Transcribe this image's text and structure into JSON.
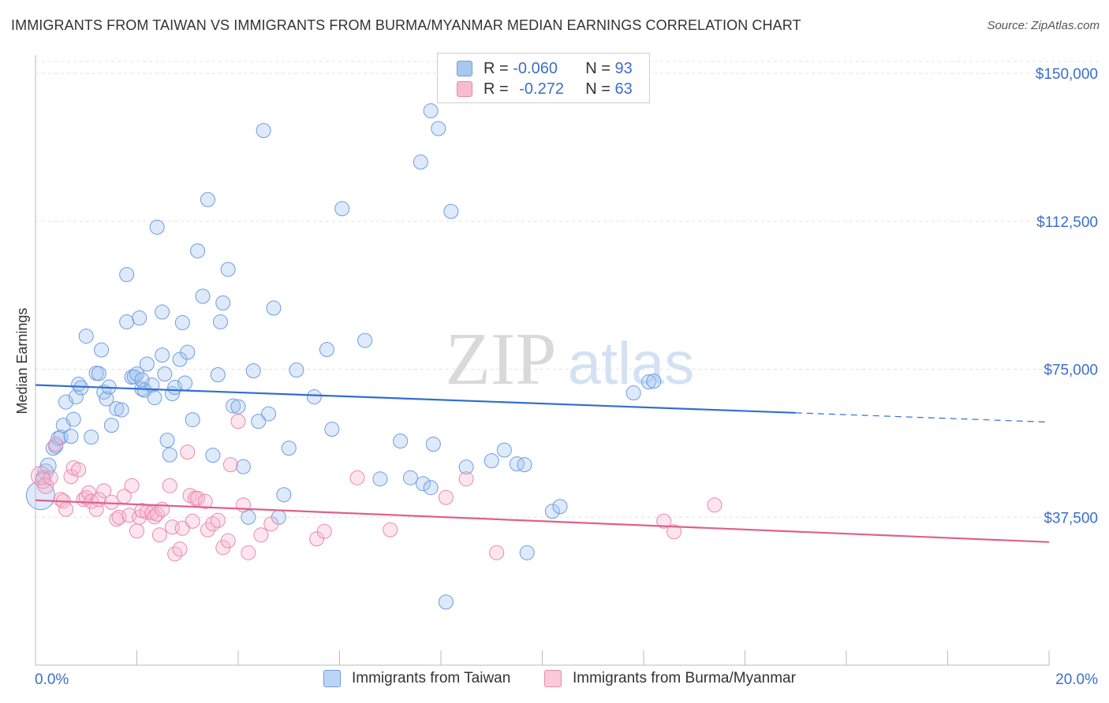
{
  "header": {
    "title": "IMMIGRANTS FROM TAIWAN VS IMMIGRANTS FROM BURMA/MYANMAR MEDIAN EARNINGS CORRELATION CHART",
    "source": "Source: ZipAtlas.com"
  },
  "watermark": {
    "zip": "ZIP",
    "atlas": "atlas"
  },
  "legend": {
    "rows": [
      {
        "r_label": "R = ",
        "r_value": "-0.060",
        "n_label": "N = ",
        "n_value": "93",
        "color": "#a9c8f0",
        "border": "#6d9de0"
      },
      {
        "r_label": "R = ",
        "r_value": "-0.272",
        "n_label": "N = ",
        "n_value": "63",
        "color": "#f7bcd0",
        "border": "#e98aaa"
      }
    ]
  },
  "bottom_legend": {
    "items": [
      {
        "label": "Immigrants from Taiwan",
        "color": "#bcd5f5",
        "border": "#6d9de0"
      },
      {
        "label": "Immigrants from Burma/Myanmar",
        "color": "#f9cad9",
        "border": "#e98aaa"
      }
    ]
  },
  "chart_data": {
    "type": "scatter",
    "title": "IMMIGRANTS FROM TAIWAN VS IMMIGRANTS FROM BURMA/MYANMAR MEDIAN EARNINGS CORRELATION CHART",
    "xlabel": "",
    "ylabel": "Median Earnings",
    "xlim": [
      0,
      20
    ],
    "ylim": [
      0,
      153000
    ],
    "x_tick_labels": [
      "0.0%",
      "20.0%"
    ],
    "y_ticks": [
      37500,
      75000,
      112500,
      150000
    ],
    "y_tick_labels": [
      "$37,500",
      "$75,000",
      "$112,500",
      "$150,000"
    ],
    "grid": true,
    "series": [
      {
        "name": "Immigrants from Taiwan",
        "color": "#6d9de0",
        "fill": "rgba(160,195,240,0.35)",
        "trend": {
          "x": [
            0,
            15.0,
            20.0
          ],
          "y": [
            71000,
            63900,
            61600
          ],
          "solid_until": 15.0,
          "color": "#2f6fd1"
        },
        "points": [
          [
            0.1,
            43000,
            18
          ],
          [
            0.2,
            49000,
            10
          ],
          [
            0.25,
            50500,
            10
          ],
          [
            0.15,
            47500,
            9
          ],
          [
            0.35,
            55000,
            9
          ],
          [
            0.4,
            55500,
            9
          ],
          [
            0.45,
            57500,
            9
          ],
          [
            0.5,
            57800,
            9
          ],
          [
            0.55,
            60800,
            9
          ],
          [
            0.6,
            66700,
            9
          ],
          [
            0.7,
            58000,
            9
          ],
          [
            0.75,
            62300,
            9
          ],
          [
            0.8,
            68000,
            9
          ],
          [
            0.85,
            71200,
            9
          ],
          [
            0.9,
            70300,
            9
          ],
          [
            1.0,
            83400,
            9
          ],
          [
            1.1,
            57800,
            9
          ],
          [
            1.2,
            74000,
            9
          ],
          [
            1.25,
            73900,
            9
          ],
          [
            1.3,
            79900,
            9
          ],
          [
            1.35,
            69200,
            9
          ],
          [
            1.4,
            67500,
            9
          ],
          [
            1.45,
            70500,
            9
          ],
          [
            1.5,
            60800,
            9
          ],
          [
            1.6,
            65000,
            9
          ],
          [
            1.7,
            64700,
            9
          ],
          [
            1.8,
            87000,
            9
          ],
          [
            1.8,
            99000,
            9
          ],
          [
            1.9,
            73000,
            9
          ],
          [
            1.95,
            73100,
            9
          ],
          [
            2.0,
            73800,
            9
          ],
          [
            2.05,
            88000,
            9
          ],
          [
            2.1,
            70000,
            9
          ],
          [
            2.15,
            69700,
            9
          ],
          [
            2.2,
            76300,
            9
          ],
          [
            2.3,
            71000,
            9
          ],
          [
            2.35,
            67800,
            9
          ],
          [
            2.1,
            72300,
            9
          ],
          [
            2.4,
            111000,
            9
          ],
          [
            2.5,
            78600,
            9
          ],
          [
            2.5,
            89500,
            9
          ],
          [
            2.55,
            73800,
            9
          ],
          [
            2.6,
            57000,
            9
          ],
          [
            2.65,
            53300,
            9
          ],
          [
            2.7,
            68800,
            9
          ],
          [
            2.75,
            70400,
            9
          ],
          [
            2.85,
            77500,
            9
          ],
          [
            2.9,
            86800,
            9
          ],
          [
            2.95,
            71500,
            9
          ],
          [
            3.0,
            79300,
            9
          ],
          [
            3.1,
            62200,
            9
          ],
          [
            3.2,
            105000,
            9
          ],
          [
            3.3,
            93500,
            9
          ],
          [
            3.4,
            118000,
            9
          ],
          [
            3.5,
            53200,
            9
          ],
          [
            3.6,
            73600,
            9
          ],
          [
            3.65,
            87000,
            9
          ],
          [
            3.7,
            91800,
            9
          ],
          [
            3.8,
            100300,
            9
          ],
          [
            3.9,
            65700,
            9
          ],
          [
            4.0,
            65500,
            9
          ],
          [
            4.1,
            50300,
            9
          ],
          [
            4.2,
            37500,
            9
          ],
          [
            4.3,
            74600,
            9
          ],
          [
            4.4,
            61800,
            9
          ],
          [
            4.5,
            135500,
            9
          ],
          [
            4.6,
            63700,
            9
          ],
          [
            4.7,
            90500,
            9
          ],
          [
            4.8,
            37500,
            9
          ],
          [
            4.9,
            43200,
            9
          ],
          [
            5.0,
            55000,
            9
          ],
          [
            5.15,
            74800,
            9
          ],
          [
            5.5,
            68000,
            9
          ],
          [
            5.75,
            80000,
            9
          ],
          [
            5.85,
            59800,
            9
          ],
          [
            6.05,
            115700,
            9
          ],
          [
            6.5,
            82300,
            9
          ],
          [
            6.8,
            47200,
            9
          ],
          [
            7.2,
            56800,
            9
          ],
          [
            7.4,
            47500,
            9
          ],
          [
            7.65,
            46000,
            9
          ],
          [
            7.8,
            45000,
            9
          ],
          [
            7.85,
            56000,
            9
          ],
          [
            7.6,
            127500,
            9
          ],
          [
            7.8,
            140500,
            9
          ],
          [
            7.95,
            136000,
            9
          ],
          [
            8.2,
            115000,
            9
          ],
          [
            8.1,
            16000,
            9
          ],
          [
            8.5,
            50200,
            9
          ],
          [
            9.0,
            51800,
            9
          ],
          [
            9.25,
            54500,
            9
          ],
          [
            9.5,
            51000,
            9
          ],
          [
            9.65,
            50800,
            9
          ],
          [
            9.7,
            28500,
            9
          ],
          [
            10.2,
            39000,
            9
          ],
          [
            10.35,
            40200,
            9
          ],
          [
            11.8,
            69000,
            9
          ],
          [
            12.1,
            71800,
            9
          ],
          [
            12.2,
            72000,
            9
          ]
        ]
      },
      {
        "name": "Immigrants from Burma/Myanmar",
        "color": "#e98aaa",
        "fill": "rgba(247,180,205,0.35)",
        "trend": {
          "x": [
            0,
            20.0
          ],
          "y": [
            41800,
            31200
          ],
          "solid_until": 20.0,
          "color": "#e0608c"
        },
        "points": [
          [
            0.1,
            48000,
            12
          ],
          [
            0.15,
            46800,
            10
          ],
          [
            0.2,
            45500,
            10
          ],
          [
            0.3,
            47500,
            9
          ],
          [
            0.4,
            56000,
            9
          ],
          [
            0.5,
            42000,
            9
          ],
          [
            0.55,
            41600,
            9
          ],
          [
            0.6,
            39500,
            9
          ],
          [
            0.7,
            47800,
            9
          ],
          [
            0.75,
            50000,
            9
          ],
          [
            0.85,
            49500,
            9
          ],
          [
            0.95,
            42000,
            9
          ],
          [
            1.0,
            42500,
            9
          ],
          [
            1.05,
            43700,
            9
          ],
          [
            1.1,
            41500,
            9
          ],
          [
            1.2,
            39500,
            9
          ],
          [
            1.25,
            42000,
            9
          ],
          [
            1.35,
            44200,
            9
          ],
          [
            1.5,
            41300,
            9
          ],
          [
            1.6,
            37000,
            9
          ],
          [
            1.65,
            37500,
            9
          ],
          [
            1.75,
            42800,
            9
          ],
          [
            1.85,
            38000,
            9
          ],
          [
            1.9,
            45500,
            9
          ],
          [
            2.0,
            34000,
            9
          ],
          [
            2.05,
            37500,
            9
          ],
          [
            2.1,
            39200,
            9
          ],
          [
            2.2,
            38800,
            9
          ],
          [
            2.3,
            38600,
            9
          ],
          [
            2.35,
            37600,
            9
          ],
          [
            2.4,
            38300,
            9
          ],
          [
            2.45,
            33000,
            9
          ],
          [
            2.5,
            39500,
            9
          ],
          [
            2.65,
            45500,
            9
          ],
          [
            2.7,
            35000,
            9
          ],
          [
            2.75,
            28200,
            9
          ],
          [
            2.85,
            29400,
            9
          ],
          [
            2.9,
            34700,
            9
          ],
          [
            3.0,
            54000,
            9
          ],
          [
            3.05,
            43000,
            9
          ],
          [
            3.1,
            36500,
            9
          ],
          [
            3.15,
            42300,
            9
          ],
          [
            3.2,
            42300,
            9
          ],
          [
            3.35,
            41500,
            9
          ],
          [
            3.4,
            34300,
            9
          ],
          [
            3.5,
            35800,
            9
          ],
          [
            3.6,
            36700,
            9
          ],
          [
            3.7,
            29800,
            9
          ],
          [
            3.8,
            31500,
            9
          ],
          [
            3.85,
            50800,
            9
          ],
          [
            4.0,
            61800,
            9
          ],
          [
            4.1,
            40600,
            9
          ],
          [
            4.2,
            28500,
            9
          ],
          [
            4.45,
            33000,
            9
          ],
          [
            4.65,
            35800,
            9
          ],
          [
            5.55,
            32000,
            9
          ],
          [
            5.7,
            33900,
            9
          ],
          [
            6.35,
            47500,
            9
          ],
          [
            7.0,
            34300,
            9
          ],
          [
            8.1,
            42500,
            9
          ],
          [
            8.5,
            47200,
            9
          ],
          [
            9.1,
            28500,
            9
          ],
          [
            12.4,
            36500,
            9
          ],
          [
            12.6,
            33800,
            9
          ],
          [
            13.4,
            40600,
            9
          ]
        ]
      }
    ]
  }
}
